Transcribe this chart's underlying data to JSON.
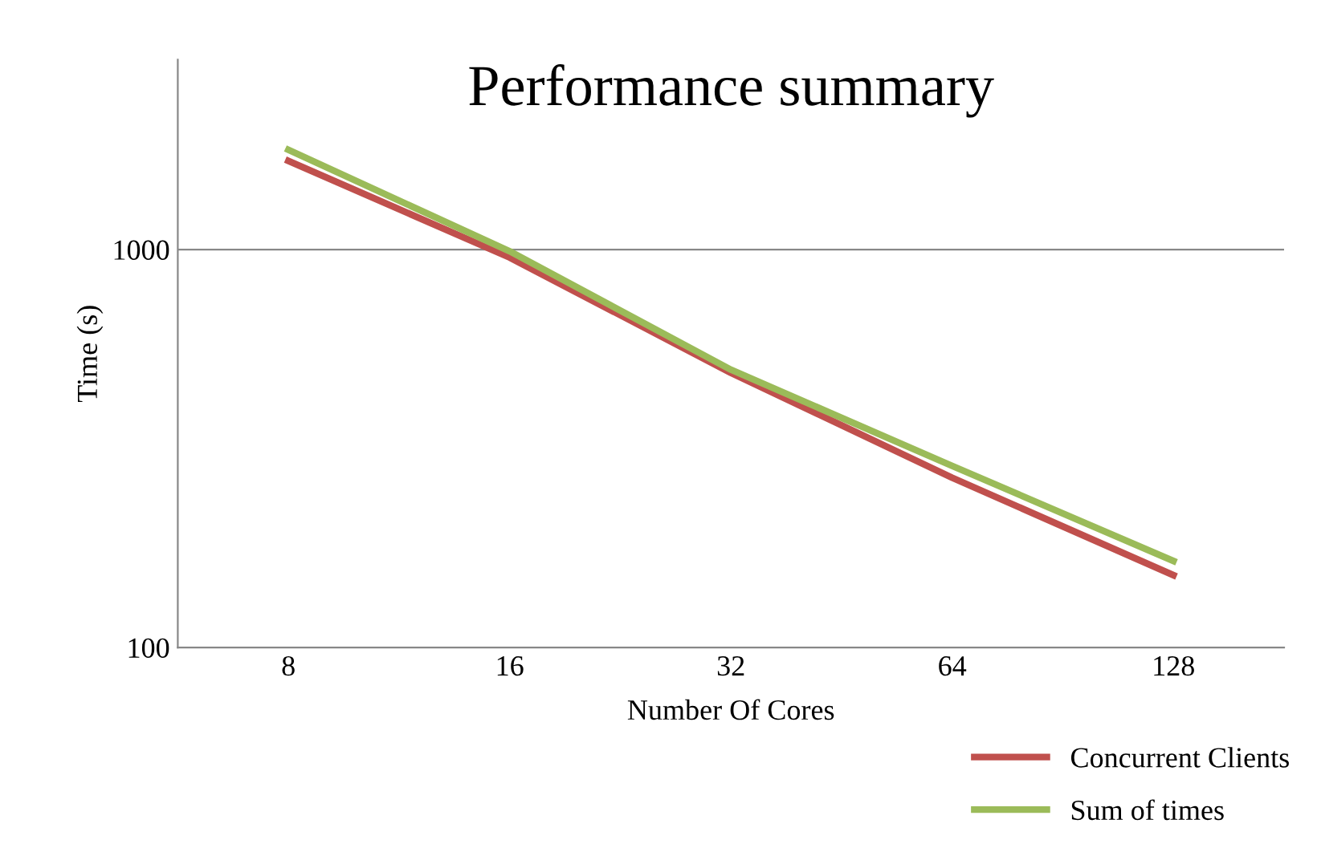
{
  "chart_data": {
    "type": "line",
    "title": "Performance summary",
    "xlabel": "Number Of Cores",
    "ylabel": "Time (s)",
    "categories": [
      "8",
      "16",
      "32",
      "64",
      "128"
    ],
    "series": [
      {
        "name": "Concurrent Clients",
        "color": "#c0504d",
        "values": [
          1670,
          955,
          490,
          267,
          152
        ]
      },
      {
        "name": "Sum of times",
        "color": "#9bbb59",
        "values": [
          1780,
          990,
          499,
          286,
          165
        ]
      }
    ],
    "log": "y",
    "ylim": [
      100,
      3000
    ],
    "yticks": [
      100,
      1000
    ],
    "grid": "y",
    "legend": "bottom right",
    "marker": "none",
    "line_style": "solid"
  }
}
